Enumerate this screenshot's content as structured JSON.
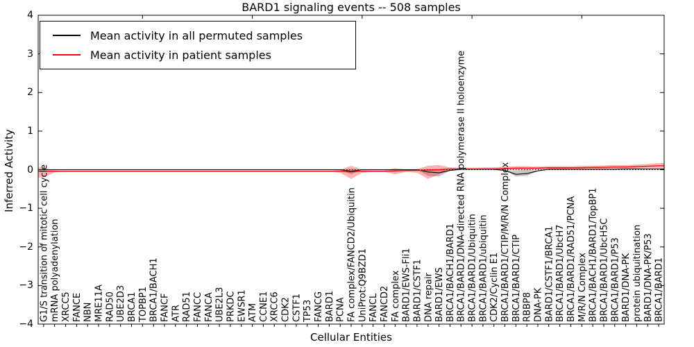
{
  "chart_data": {
    "type": "line",
    "title": "BARD1 signaling events -- 508 samples",
    "xlabel": "Cellular Entities",
    "ylabel": "Inferred Activity",
    "ylim": [
      -4,
      4
    ],
    "yticks": [
      4,
      3,
      2,
      1,
      0,
      -1,
      -2,
      -3,
      -4
    ],
    "grid": false,
    "legend_position": "upper-left",
    "zero_line": {
      "style": "dotted",
      "color": "#000000",
      "y": 0
    },
    "colors": {
      "permuted_line": "#000000",
      "patient_line": "#ff0000",
      "patient_band": "rgba(255,0,0,0.30)",
      "permuted_band": "rgba(0,0,0,0.22)",
      "axis": "#000000",
      "background": "#ffffff"
    },
    "categories": [
      "G1/S transition of mitotic cell cycle",
      "mRNA polyadenylation",
      "XRCC5",
      "FANCE",
      "NBN",
      "MRE11A",
      "RAD50",
      "UBE2D3",
      "BRCA1",
      "TOPBP1",
      "BRCA1/BACH1",
      "FANCF",
      "ATR",
      "RAD51",
      "FANCC",
      "FANCA",
      "UBE2L3",
      "PRKDC",
      "EWSR1",
      "ATM",
      "CCNE1",
      "XRCC6",
      "CDK2",
      "CSTF1",
      "TP53",
      "FANCG",
      "BARD1",
      "PCNA",
      "FA complex/FANCD2/Ubiquitin",
      "UniProt:Q9BZD1",
      "FANCL",
      "FANCD2",
      "FA complex",
      "BARD1/EWS-Fli1",
      "BARD1/CSTF1",
      "DNA repair",
      "BARD1/EWS",
      "BRCA1/BACH1/BARD1",
      "BRCA1/BARD1/DNA-directed RNA polymerase II holoenzyme",
      "BRCA1/BARD1/Ubiquitin",
      "BRCA1/BARD1/ubiquitin",
      "CDK2/Cyclin E1",
      "BRCA1/BARD1/CTIP/M/R/N Complex",
      "BRCA1/BARD1/CTIP",
      "RBBP8",
      "DNA-PK",
      "BARD1/CSTF1/BRCA1",
      "BRCA1/BARD1/UbcH7",
      "BRCA1/BARD1/RAD51/PCNA",
      "M/R/N Complex",
      "BRCA1/BACH1/BARD1/TopBP1",
      "BRCA1/BARD1/UbcH5C",
      "BRCA1/BARD1/P53",
      "BARD1/DNA-PK",
      "protein ubiquitination",
      "BARD1/DNA-PK/P53",
      "BRCA1/BARD1"
    ],
    "series": [
      {
        "name": "Mean activity in all permuted samples",
        "color": "#000000",
        "values": [
          0,
          0,
          0,
          0,
          0,
          0,
          0,
          0,
          0,
          0,
          0,
          0,
          0,
          0,
          0,
          0,
          0,
          0,
          0,
          0,
          0,
          0,
          0,
          0,
          0,
          0,
          0,
          0,
          -0.04,
          0,
          0,
          0,
          0,
          0,
          0,
          -0.06,
          -0.08,
          -0.02,
          0.01,
          0.01,
          0.01,
          0.01,
          -0.02,
          -0.12,
          -0.1,
          -0.03,
          0.01,
          0.01,
          0.01,
          0.01,
          0.01,
          0.01,
          0.01,
          0.02,
          0.02,
          0.02,
          0.02
        ],
        "band_lower": [
          0,
          0,
          0,
          0,
          0,
          0,
          0,
          0,
          0,
          0,
          0,
          0,
          0,
          0,
          0,
          0,
          0,
          0,
          0,
          0,
          0,
          0,
          0,
          0,
          0,
          0,
          0,
          0,
          -0.12,
          0,
          0,
          0,
          0,
          0,
          0,
          -0.16,
          -0.18,
          -0.02,
          0.01,
          0.01,
          0.01,
          0.01,
          -0.02,
          -0.18,
          -0.16,
          -0.03,
          0.01,
          0.01,
          0.01,
          0.01,
          0.01,
          0.01,
          0.01,
          0.02,
          0.02,
          0.02,
          0.02
        ],
        "band_upper": [
          0,
          0,
          0,
          0,
          0,
          0,
          0,
          0,
          0,
          0,
          0,
          0,
          0,
          0,
          0,
          0,
          0,
          0,
          0,
          0,
          0,
          0,
          0,
          0,
          0,
          0,
          0,
          0,
          0.02,
          0,
          0,
          0,
          0,
          0,
          0,
          0.02,
          0.02,
          -0.02,
          0.01,
          0.01,
          0.01,
          0.01,
          -0.02,
          -0.02,
          0.0,
          -0.03,
          0.01,
          0.01,
          0.01,
          0.01,
          0.01,
          0.01,
          0.01,
          0.02,
          0.02,
          0.02,
          0.02
        ]
      },
      {
        "name": "Mean activity in patient samples",
        "color": "#ff0000",
        "values": [
          -0.04,
          -0.04,
          -0.04,
          -0.04,
          -0.04,
          -0.04,
          -0.04,
          -0.04,
          -0.04,
          -0.04,
          -0.04,
          -0.04,
          -0.04,
          -0.04,
          -0.04,
          -0.04,
          -0.04,
          -0.04,
          -0.04,
          -0.04,
          -0.04,
          -0.04,
          -0.04,
          -0.04,
          -0.04,
          -0.04,
          -0.04,
          -0.04,
          -0.06,
          -0.04,
          -0.04,
          -0.04,
          -0.03,
          -0.02,
          -0.02,
          -0.01,
          0,
          0.02,
          0.02,
          0.02,
          0.02,
          0.02,
          0.03,
          0.04,
          0.04,
          0.04,
          0.05,
          0.05,
          0.05,
          0.05,
          0.06,
          0.06,
          0.07,
          0.07,
          0.08,
          0.09,
          0.1
        ],
        "band_lower": [
          -0.2,
          -0.07,
          -0.05,
          -0.05,
          -0.05,
          -0.05,
          -0.05,
          -0.05,
          -0.05,
          -0.05,
          -0.05,
          -0.05,
          -0.05,
          -0.05,
          -0.05,
          -0.05,
          -0.05,
          -0.05,
          -0.05,
          -0.05,
          -0.05,
          -0.05,
          -0.05,
          -0.05,
          -0.05,
          -0.05,
          -0.05,
          -0.08,
          -0.24,
          -0.08,
          -0.06,
          -0.06,
          -0.12,
          -0.06,
          -0.08,
          -0.24,
          -0.12,
          -0.02,
          0,
          0,
          0,
          0,
          0,
          0,
          0,
          0.01,
          0.01,
          0.01,
          0.02,
          0.02,
          0.02,
          0.02,
          0.03,
          0.03,
          0.03,
          0.04,
          0.04
        ],
        "band_upper": [
          0.06,
          -0.02,
          -0.03,
          -0.03,
          -0.03,
          -0.03,
          -0.03,
          -0.03,
          -0.03,
          -0.03,
          -0.03,
          -0.03,
          -0.03,
          -0.03,
          -0.03,
          -0.03,
          -0.03,
          -0.03,
          -0.03,
          -0.03,
          -0.03,
          -0.03,
          -0.03,
          -0.03,
          -0.03,
          -0.03,
          -0.03,
          0.0,
          0.1,
          0.0,
          -0.02,
          -0.02,
          0.04,
          0.0,
          0.02,
          0.1,
          0.12,
          0.06,
          0.05,
          0.05,
          0.06,
          0.06,
          0.08,
          0.09,
          0.09,
          0.08,
          0.09,
          0.09,
          0.09,
          0.1,
          0.1,
          0.11,
          0.12,
          0.12,
          0.13,
          0.15,
          0.17
        ]
      }
    ]
  }
}
